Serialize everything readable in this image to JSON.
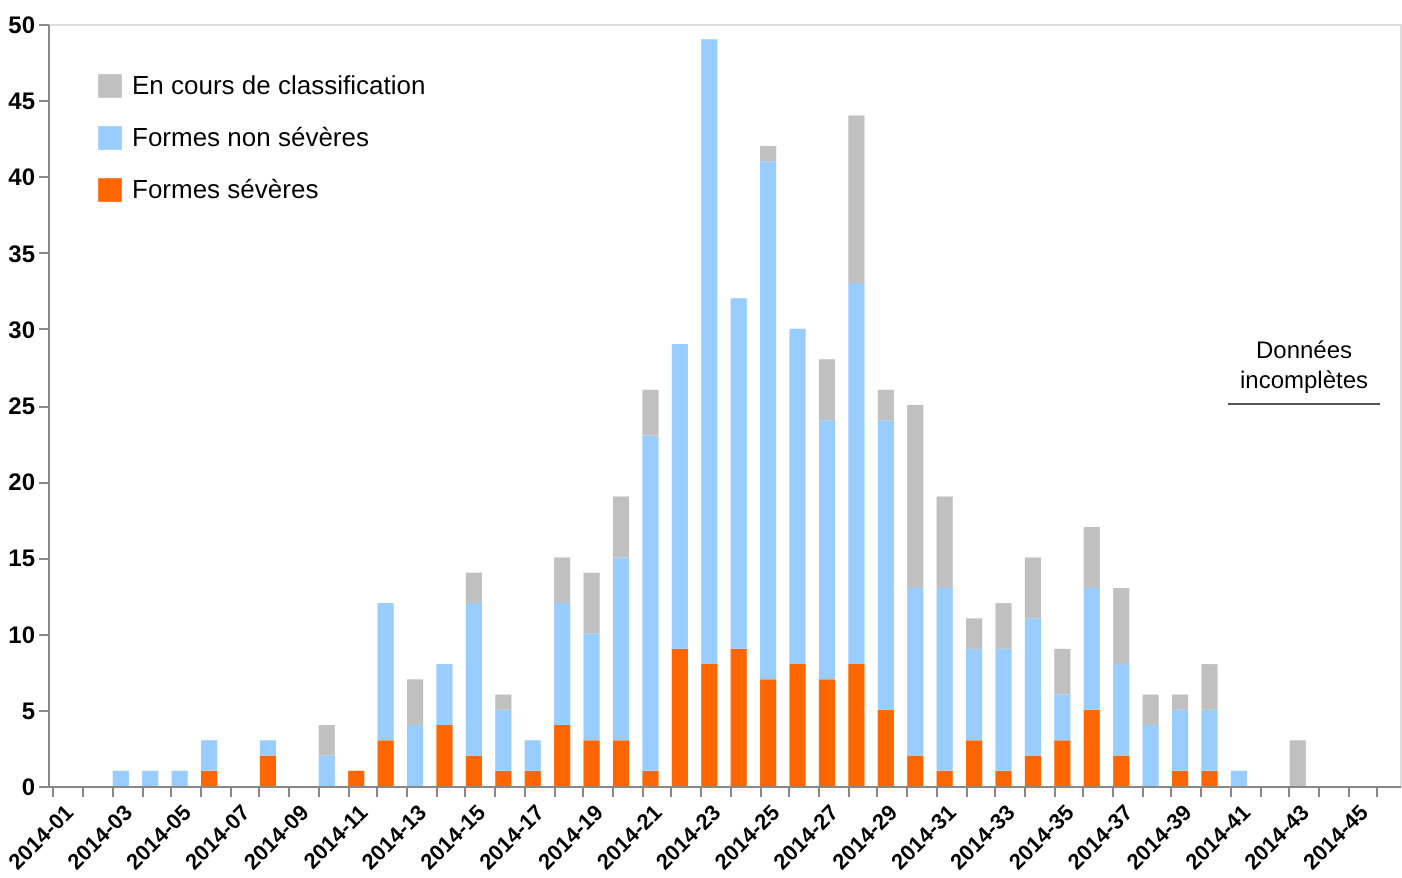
{
  "chart_data": {
    "type": "bar",
    "stacked": true,
    "categories": [
      "2014-01",
      null,
      "2014-03",
      null,
      "2014-05",
      null,
      "2014-07",
      null,
      "2014-09",
      null,
      "2014-11",
      null,
      "2014-13",
      null,
      "2014-15",
      null,
      "2014-17",
      null,
      "2014-19",
      null,
      "2014-21",
      null,
      "2014-23",
      null,
      "2014-25",
      null,
      "2014-27",
      null,
      "2014-29",
      null,
      "2014-31",
      null,
      "2014-33",
      null,
      "2014-35",
      null,
      "2014-37",
      null,
      "2014-39",
      null,
      "2014-41",
      null,
      "2014-43",
      null,
      "2014-45",
      null
    ],
    "series": [
      {
        "name": "Formes sévères",
        "color": "#ff6600",
        "values": [
          0,
          0,
          0,
          0,
          0,
          1,
          0,
          2,
          0,
          0,
          1,
          3,
          0,
          4,
          2,
          1,
          1,
          4,
          3,
          3,
          1,
          9,
          8,
          9,
          7,
          8,
          7,
          8,
          5,
          2,
          1,
          3,
          1,
          2,
          3,
          5,
          2,
          0,
          1,
          1,
          0,
          0,
          0,
          0,
          0,
          0
        ]
      },
      {
        "name": "Formes non sévères",
        "color": "#99ccff",
        "values": [
          0,
          0,
          1,
          1,
          1,
          2,
          0,
          1,
          0,
          2,
          0,
          9,
          4,
          4,
          10,
          4,
          2,
          8,
          7,
          12,
          22,
          20,
          41,
          23,
          34,
          22,
          17,
          25,
          19,
          11,
          12,
          6,
          8,
          9,
          3,
          8,
          6,
          4,
          4,
          4,
          1,
          0,
          0,
          0,
          0,
          0
        ]
      },
      {
        "name": "En cours de classification",
        "color": "#c0c0c0",
        "values": [
          0,
          0,
          0,
          0,
          0,
          0,
          0,
          0,
          0,
          2,
          0,
          0,
          3,
          0,
          2,
          1,
          0,
          3,
          4,
          4,
          3,
          0,
          0,
          0,
          1,
          0,
          4,
          11,
          2,
          12,
          6,
          2,
          3,
          4,
          3,
          4,
          5,
          2,
          1,
          3,
          0,
          0,
          3,
          0,
          0,
          0
        ]
      }
    ],
    "ylim": [
      0,
      50
    ],
    "yticks": [
      0,
      5,
      10,
      15,
      20,
      25,
      30,
      35,
      40,
      45,
      50
    ],
    "grid": false,
    "legend": "top left",
    "annotations": [
      "Données incomplètes"
    ]
  }
}
